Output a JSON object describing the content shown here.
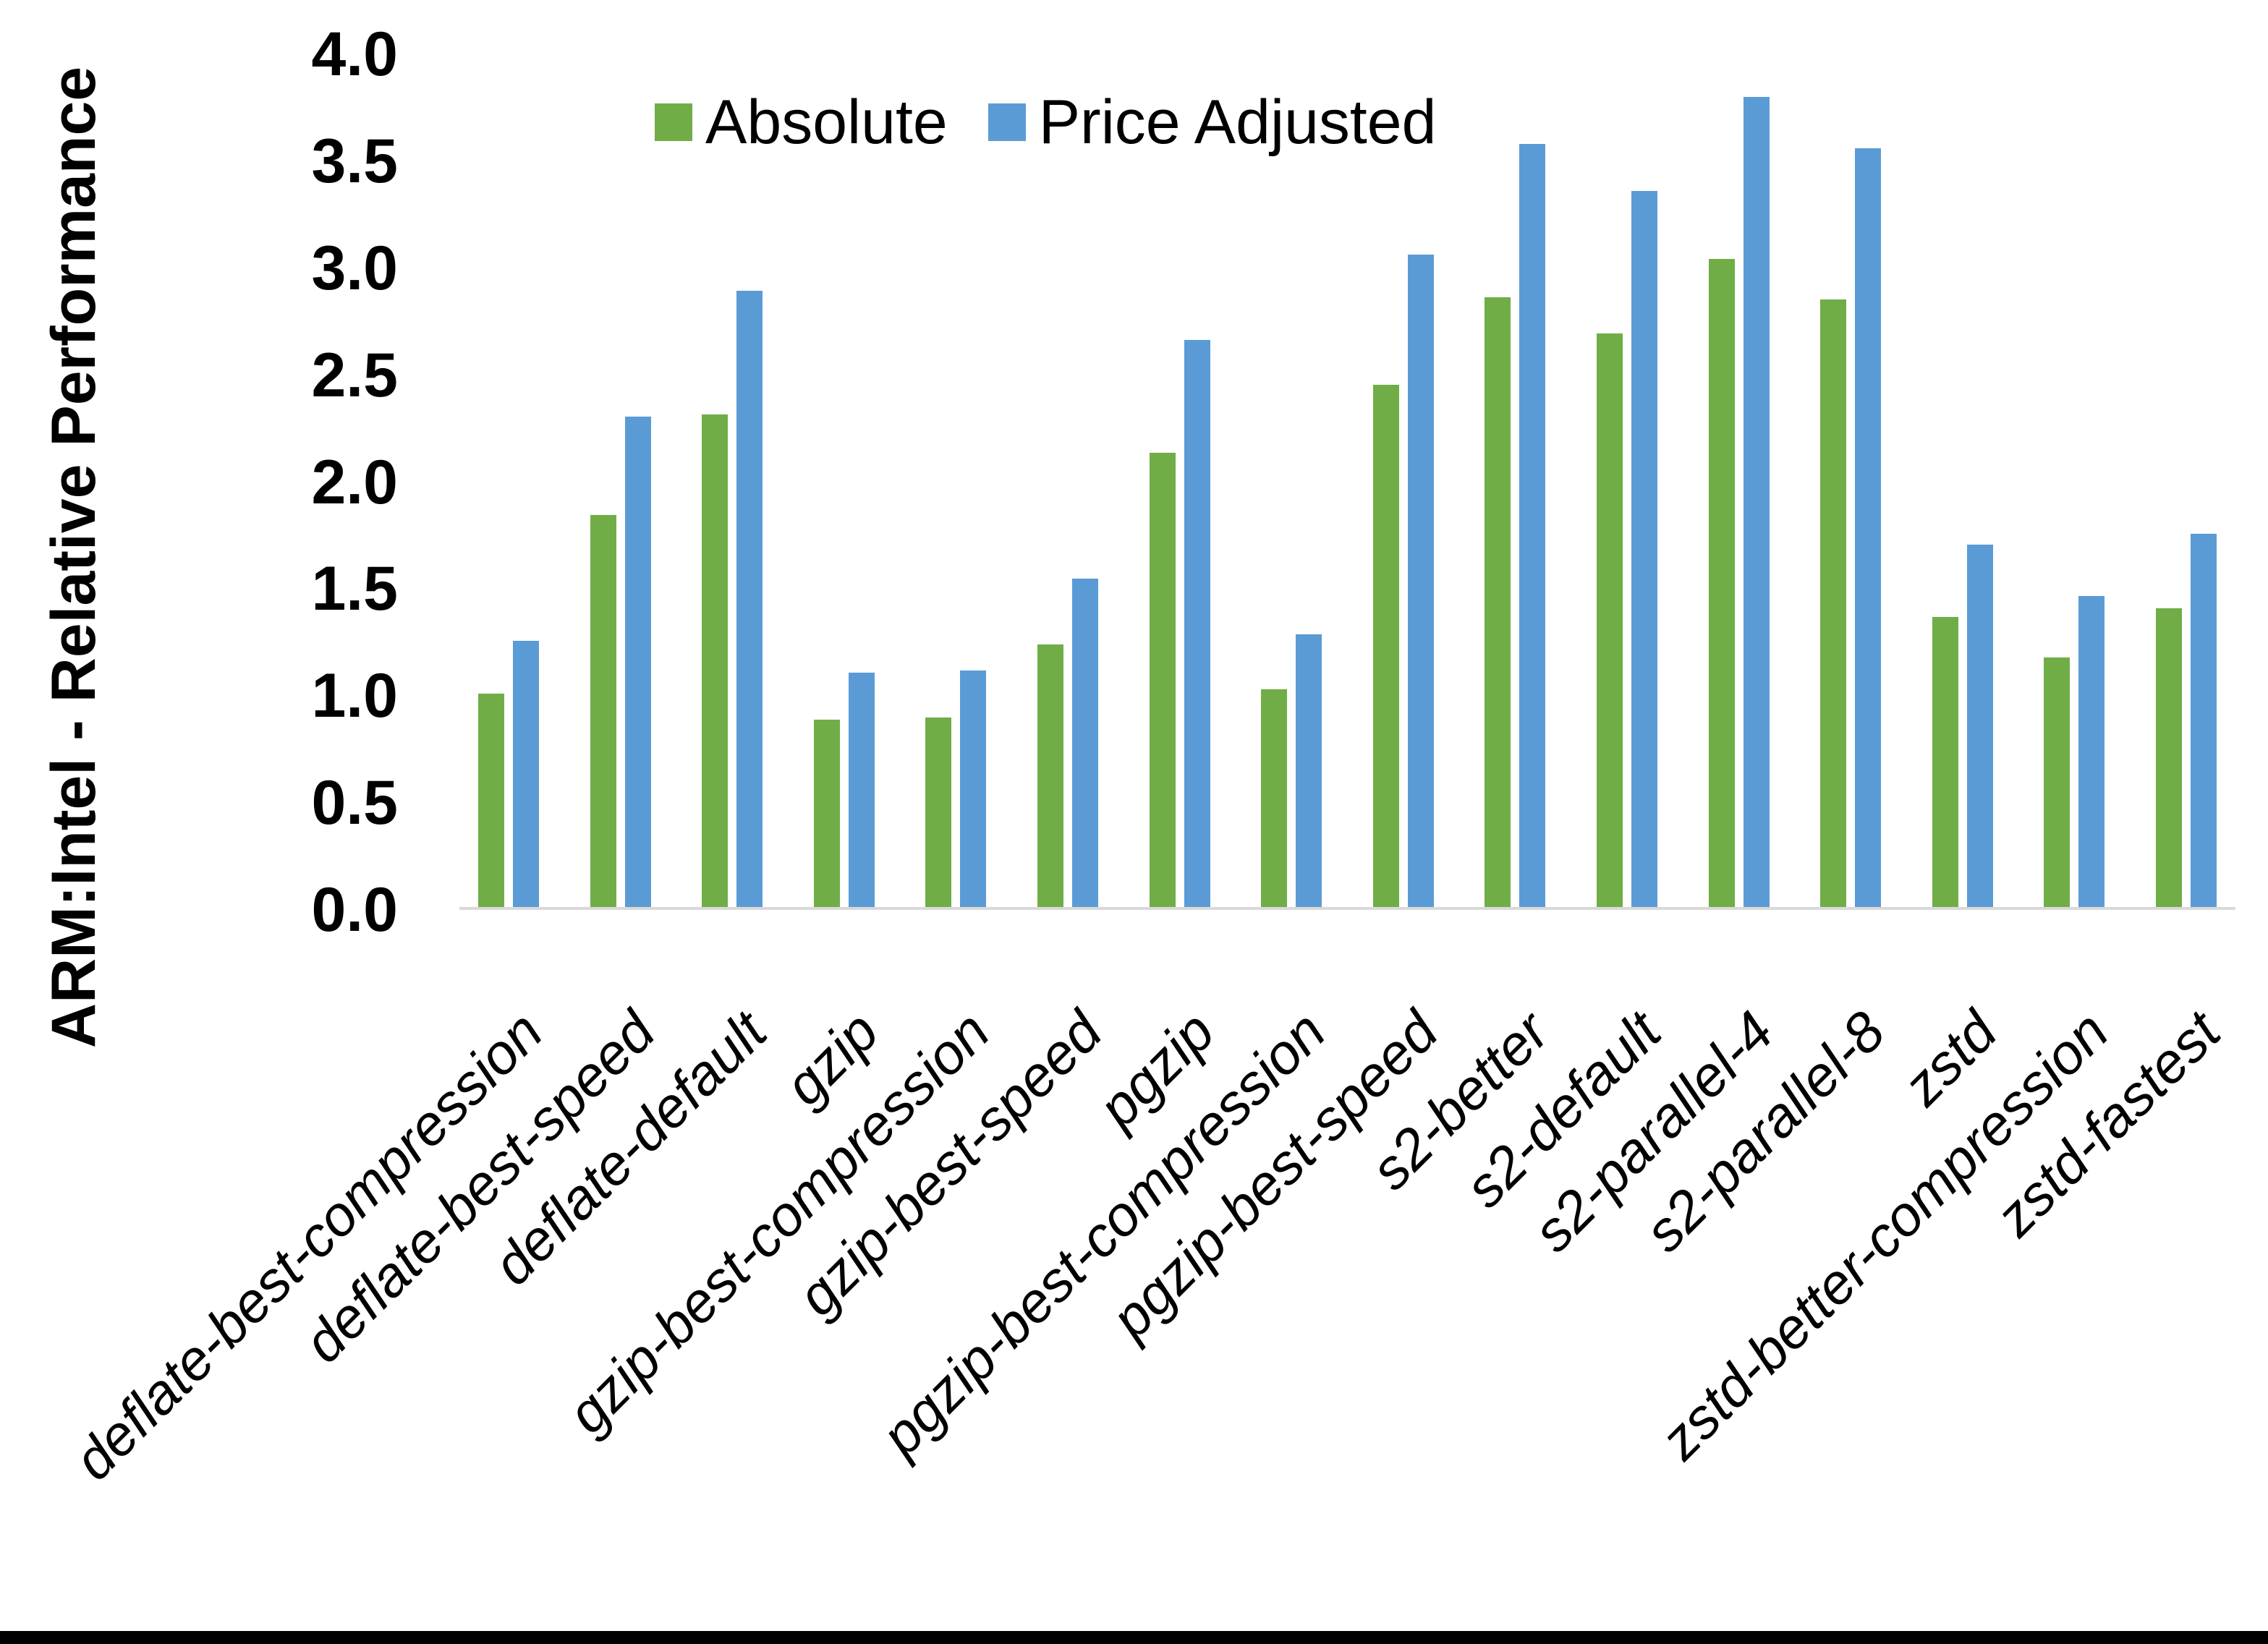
{
  "chart_data": {
    "type": "bar",
    "title": "",
    "xlabel": "",
    "ylabel": "ARM:Intel - Relative Performance",
    "ylim": [
      0,
      4
    ],
    "yticks": [
      "0.0",
      "0.5",
      "1.0",
      "1.5",
      "2.0",
      "2.5",
      "3.0",
      "3.5",
      "4.0"
    ],
    "grid": false,
    "legend_position": "top-center",
    "categories": [
      "deflate-best-compression",
      "deflate-best-speed",
      "deflate-default",
      "gzip",
      "gzip-best-compression",
      "gzip-best-speed",
      "pgzip",
      "pgzip-best-compression",
      "pgzip-best-speed",
      "s2-better",
      "s2-default",
      "s2-parallel-4",
      "s2-parallel-8",
      "zstd",
      "zstd-better-compression",
      "zstd-fastest"
    ],
    "series": [
      {
        "name": "Absolute",
        "color": "#70AD47",
        "values": [
          1.0,
          1.84,
          2.31,
          0.88,
          0.89,
          1.23,
          2.13,
          1.02,
          2.45,
          2.86,
          2.69,
          3.04,
          2.85,
          1.36,
          1.17,
          1.4
        ]
      },
      {
        "name": "Price Adjusted",
        "color": "#5B9BD5",
        "values": [
          1.25,
          2.3,
          2.89,
          1.1,
          1.11,
          1.54,
          2.66,
          1.28,
          3.06,
          3.58,
          3.36,
          3.8,
          3.56,
          1.7,
          1.46,
          1.75
        ]
      }
    ]
  },
  "colors": {
    "background": "#FFFFFF",
    "axis_line": "#D9D9D9",
    "text": "#000000",
    "bottom_border": "#000000"
  }
}
